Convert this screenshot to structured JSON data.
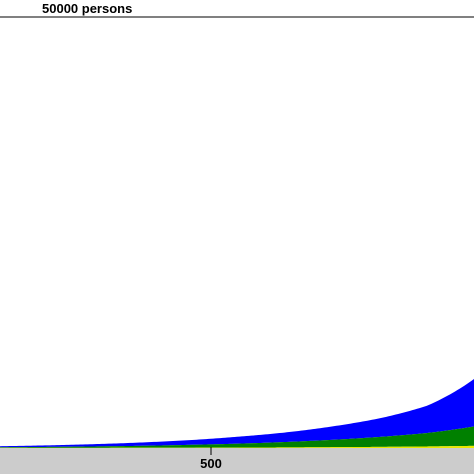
{
  "chart_data": {
    "type": "area",
    "stacked": true,
    "ylabel": "50000 persons",
    "x_ticks": [
      500
    ],
    "ylim": [
      0,
      50000
    ],
    "xlim": [
      0,
      1000
    ],
    "grid": false,
    "legend": "none",
    "x": [
      0,
      100,
      200,
      300,
      400,
      500,
      600,
      700,
      800,
      900,
      1000
    ],
    "series": [
      {
        "color": "#e8e800",
        "values": [
          10,
          15,
          20,
          25,
          35,
          50,
          70,
          95,
          130,
          180,
          250
        ]
      },
      {
        "color": "#008000",
        "values": [
          80,
          110,
          160,
          230,
          330,
          450,
          620,
          850,
          1150,
          1550,
          2250
        ]
      },
      {
        "color": "#0000ff",
        "values": [
          120,
          180,
          270,
          390,
          550,
          800,
          1100,
          1550,
          2150,
          3150,
          5500
        ]
      }
    ],
    "baseline_band_color": "#cccccc"
  }
}
